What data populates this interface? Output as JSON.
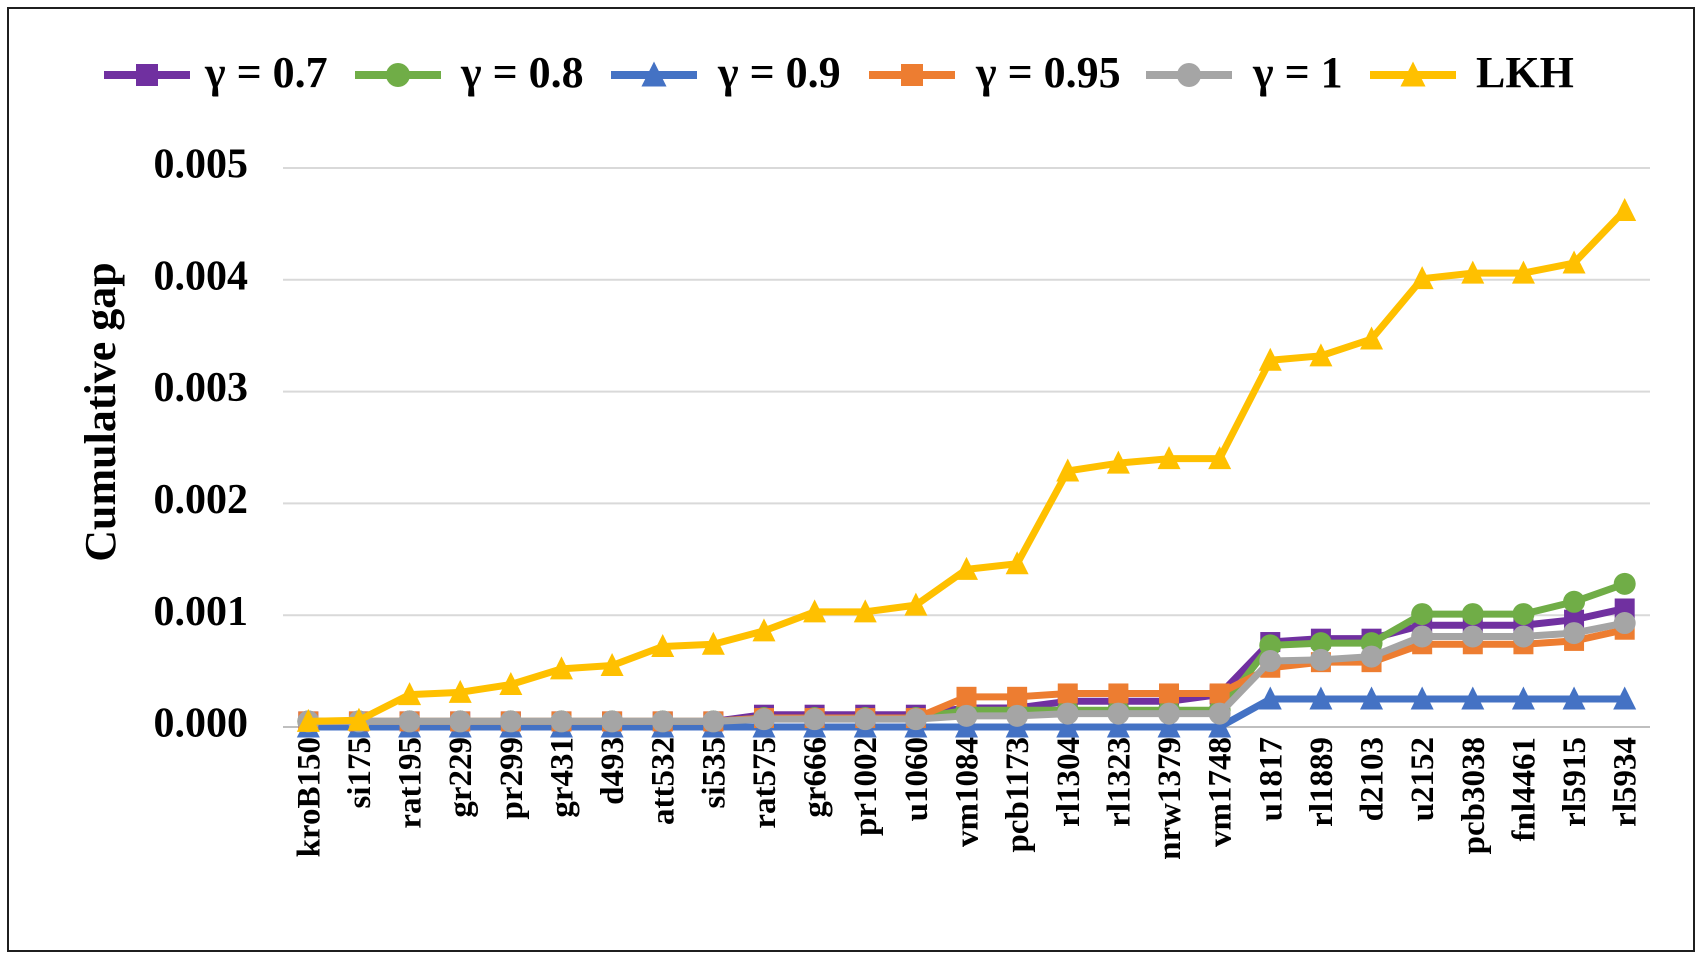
{
  "chart_data": {
    "type": "line",
    "title": "",
    "xlabel": "",
    "ylabel": "Cumulative gap",
    "ylim": [
      0,
      0.005
    ],
    "yticks": [
      "0.000",
      "0.001",
      "0.002",
      "0.003",
      "0.004",
      "0.005"
    ],
    "grid": true,
    "legend_position": "top",
    "categories": [
      "kroB150",
      "si175",
      "rat195",
      "gr229",
      "pr299",
      "gr431",
      "d493",
      "att532",
      "si535",
      "rat575",
      "gr666",
      "pr1002",
      "u1060",
      "vm1084",
      "pcb1173",
      "rl1304",
      "rl1323",
      "nrw1379",
      "vm1748",
      "u1817",
      "rl1889",
      "d2103",
      "u2152",
      "pcb3038",
      "fnl4461",
      "rl5915",
      "rl5934"
    ],
    "series": [
      {
        "name": "γ = 0.7",
        "color": "#7030A0",
        "marker": "square",
        "values": [
          5e-05,
          5e-05,
          5e-05,
          5e-05,
          5e-05,
          5e-05,
          5e-05,
          5e-05,
          5e-05,
          0.00011,
          0.00011,
          0.00011,
          0.00011,
          0.00017,
          0.00017,
          0.00023,
          0.00023,
          0.00023,
          0.00029,
          0.00076,
          0.00079,
          0.00079,
          0.00091,
          0.00091,
          0.00091,
          0.00096,
          0.00106
        ]
      },
      {
        "name": "γ = 0.8",
        "color": "#70AD47",
        "marker": "circle",
        "values": [
          5e-05,
          5e-05,
          5e-05,
          5e-05,
          5e-05,
          5e-05,
          5e-05,
          5e-05,
          5e-05,
          8e-05,
          8e-05,
          8e-05,
          8e-05,
          0.00015,
          0.00015,
          0.00015,
          0.00015,
          0.00015,
          0.00015,
          0.00073,
          0.00075,
          0.00075,
          0.00101,
          0.00101,
          0.00101,
          0.00112,
          0.00128
        ]
      },
      {
        "name": "γ = 0.9",
        "color": "#4472C4",
        "marker": "triangle",
        "values": [
          0.0,
          0.0,
          0.0,
          0.0,
          0.0,
          0.0,
          0.0,
          0.0,
          0.0,
          0.0,
          0.0,
          0.0,
          0.0,
          0.0,
          0.0,
          0.0,
          0.0,
          0.0,
          0.0,
          0.00025,
          0.00025,
          0.00025,
          0.00025,
          0.00025,
          0.00025,
          0.00025,
          0.00025
        ]
      },
      {
        "name": "γ = 0.95",
        "color": "#ED7D31",
        "marker": "square",
        "values": [
          5e-05,
          5e-05,
          5e-05,
          5e-05,
          5e-05,
          5e-05,
          5e-05,
          5e-05,
          5e-05,
          8e-05,
          8e-05,
          8e-05,
          8e-05,
          0.00027,
          0.00027,
          0.0003,
          0.0003,
          0.0003,
          0.0003,
          0.00053,
          0.00058,
          0.00058,
          0.00074,
          0.00074,
          0.00074,
          0.00077,
          0.00087
        ]
      },
      {
        "name": "γ = 1",
        "color": "#A5A5A5",
        "marker": "circle",
        "values": [
          5e-05,
          5e-05,
          5e-05,
          5e-05,
          5e-05,
          5e-05,
          5e-05,
          5e-05,
          5e-05,
          7e-05,
          7e-05,
          7e-05,
          7e-05,
          0.0001,
          0.0001,
          0.00012,
          0.00012,
          0.00012,
          0.00012,
          0.00059,
          0.0006,
          0.00063,
          0.00081,
          0.00081,
          0.00081,
          0.00084,
          0.00093
        ]
      },
      {
        "name": "LKH",
        "color": "#FFC000",
        "marker": "triangle",
        "values": [
          5e-05,
          6e-05,
          0.00029,
          0.00031,
          0.00038,
          0.00052,
          0.00055,
          0.00072,
          0.00074,
          0.00086,
          0.00103,
          0.00103,
          0.00109,
          0.00141,
          0.00146,
          0.00229,
          0.00236,
          0.0024,
          0.0024,
          0.00328,
          0.00332,
          0.00347,
          0.00401,
          0.00406,
          0.00406,
          0.00415,
          0.00462
        ]
      }
    ]
  }
}
